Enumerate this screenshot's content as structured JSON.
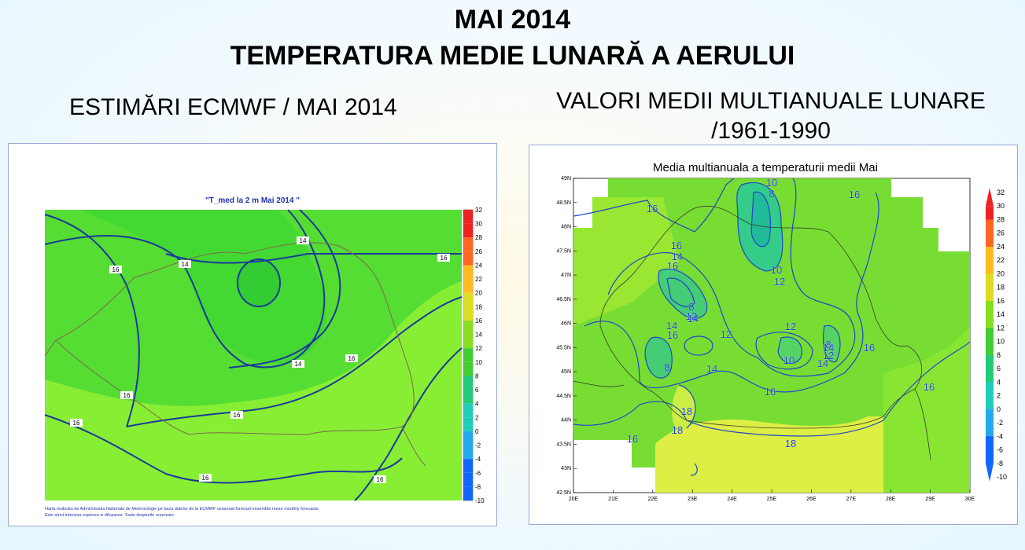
{
  "title": {
    "line1": "MAI 2014",
    "line2": "TEMPERATURA MEDIE LUNARĂ A AERULUI"
  },
  "left": {
    "heading": "ESTIMĂRI ECMWF / MAI 2014",
    "map_title": "\"T_med la 2 m Mai 2014 \"",
    "footer_line1": "Harta realizata de Administratia Nationala de Meteorologie pe baza datelor de la ECMWF seasonal forecast ensemble mean monthly forecasts.",
    "footer_line2": "Este strict interzisa copierea si difuzarea. Toate drepturile rezervate.",
    "contour_labels": [
      "16",
      "14",
      "14",
      "16",
      "14",
      "16",
      "16",
      "16",
      "16",
      "16",
      "16",
      "16"
    ],
    "colorbar_ticks": [
      "32",
      "30",
      "28",
      "26",
      "24",
      "22",
      "20",
      "18",
      "16",
      "14",
      "12",
      "10",
      "8",
      "6",
      "4",
      "2",
      "0",
      "-2",
      "-4",
      "-6",
      "-8",
      "-10"
    ]
  },
  "right": {
    "heading_line1": "VALORI MEDII MULTIANUALE LUNARE",
    "heading_line2": "/1961-1990",
    "map_title": "Media multianuala a temperaturii medii Mai",
    "lat_ticks": [
      "49N",
      "48.5N",
      "48N",
      "47.5N",
      "47N",
      "46.5N",
      "46N",
      "45.5N",
      "45N",
      "44.5N",
      "44N",
      "43.5N",
      "43N",
      "42.5N"
    ],
    "lon_ticks": [
      "20E",
      "21E",
      "22E",
      "23E",
      "24E",
      "25E",
      "26E",
      "27E",
      "28E",
      "29E",
      "30E"
    ],
    "contour_labels": [
      "16",
      "10",
      "8",
      "16",
      "16",
      "14",
      "16",
      "8",
      "12",
      "14",
      "10",
      "12",
      "14",
      "16",
      "12",
      "8",
      "12",
      "14",
      "12",
      "10",
      "8",
      "14",
      "14",
      "16",
      "16",
      "16",
      "18",
      "18",
      "16",
      "18"
    ],
    "colorbar_ticks": [
      "32",
      "30",
      "28",
      "26",
      "24",
      "22",
      "20",
      "18",
      "16",
      "14",
      "12",
      "10",
      "8",
      "6",
      "4",
      "2",
      "0",
      "-2",
      "-4",
      "-6",
      "-8",
      "-10"
    ]
  },
  "colors": {
    "map_green": "#66dd33",
    "map_light_green": "#99ee33",
    "map_dark_green": "#33cc33",
    "map_yellow": "#ddee44",
    "map_teal": "#33ccaa",
    "contour": "#1a3a9a",
    "border": "#7a6a4a"
  }
}
